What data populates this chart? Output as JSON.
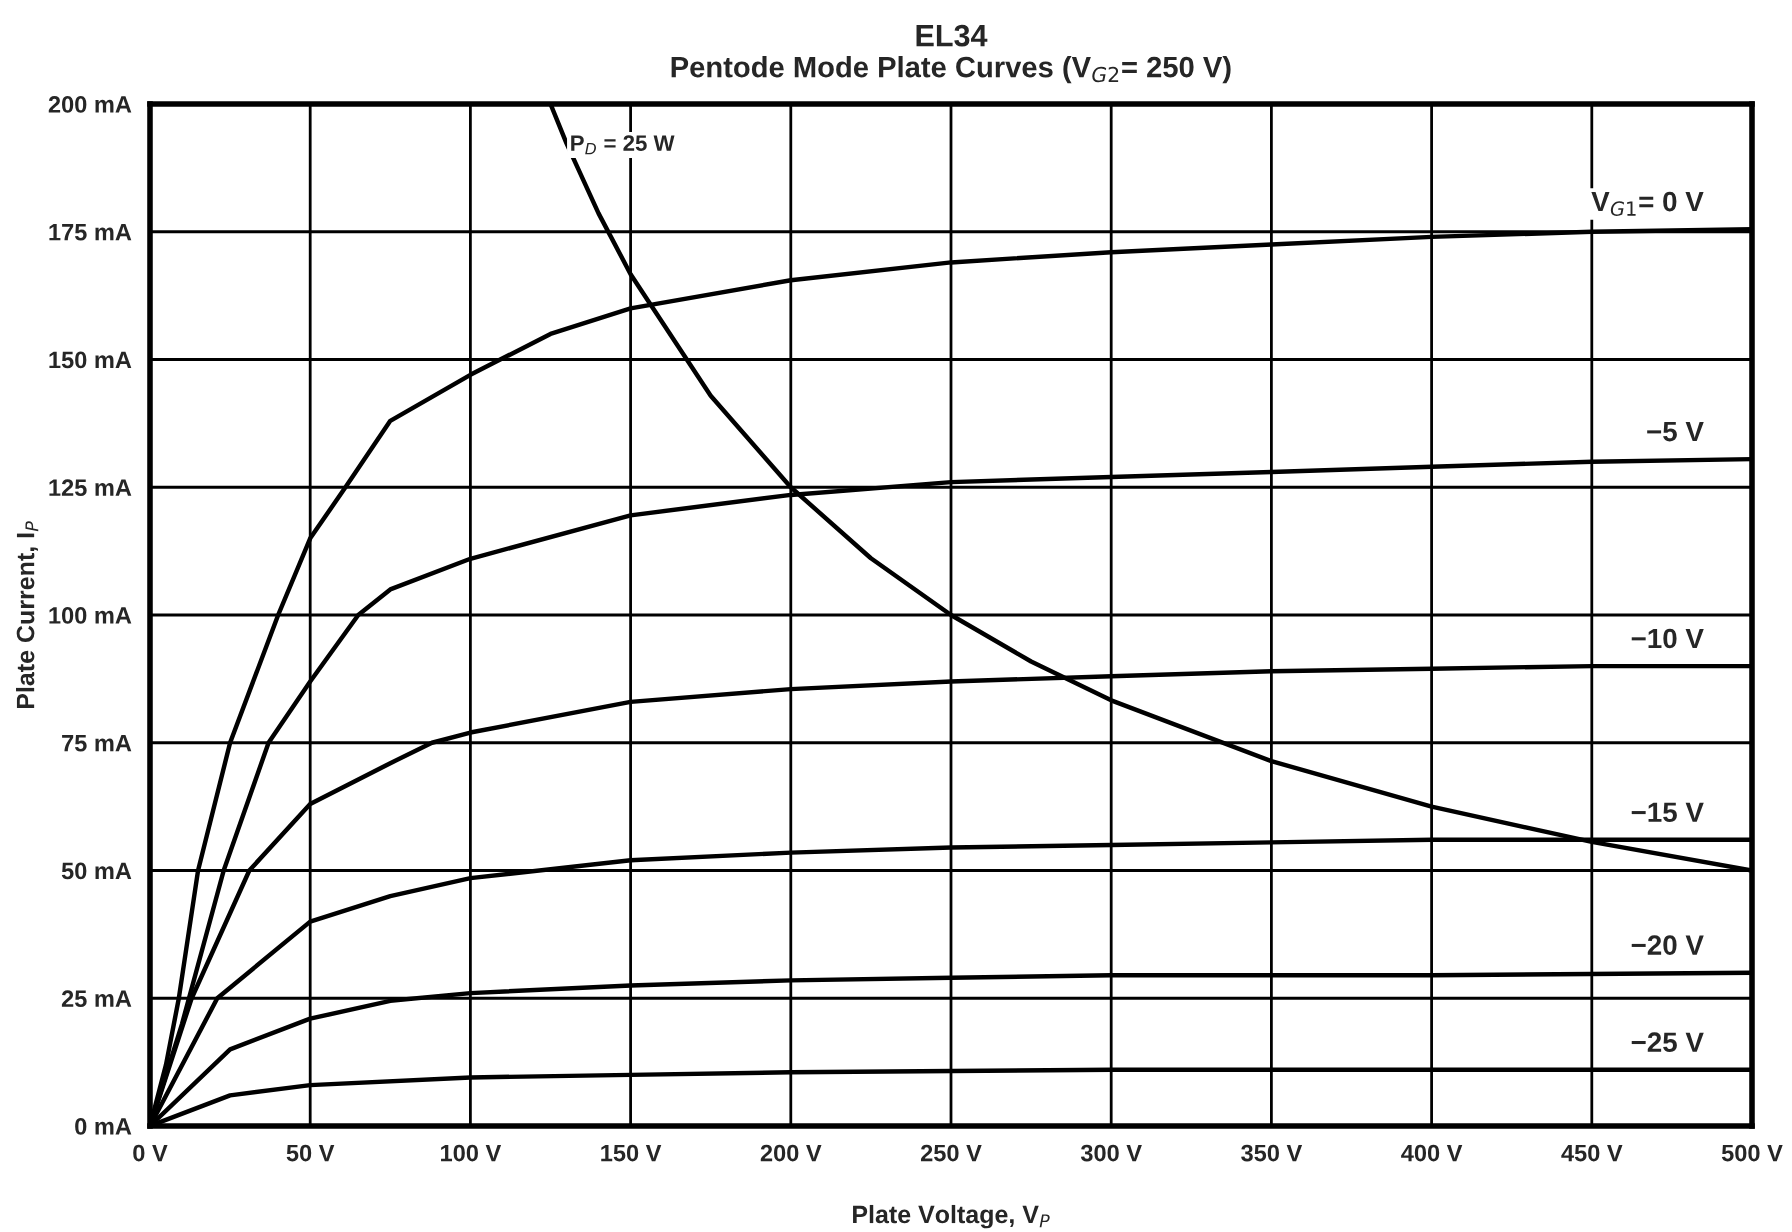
{
  "chart_data": {
    "type": "line",
    "title": "EL34",
    "subtitle": "Pentode Mode Plate Curves (V$_{G2}$= 250 V)",
    "xlabel": "Plate Voltage, V$_{P}$",
    "ylabel": "Plate Current, I$_{P}$",
    "xlim": [
      0,
      500
    ],
    "ylim": [
      0,
      200
    ],
    "xticks": [
      {
        "value": 0,
        "label": "0 V"
      },
      {
        "value": 50,
        "label": "50 V"
      },
      {
        "value": 100,
        "label": "100 V"
      },
      {
        "value": 150,
        "label": "150 V"
      },
      {
        "value": 200,
        "label": "200 V"
      },
      {
        "value": 250,
        "label": "250 V"
      },
      {
        "value": 300,
        "label": "300 V"
      },
      {
        "value": 350,
        "label": "350 V"
      },
      {
        "value": 400,
        "label": "400 V"
      },
      {
        "value": 450,
        "label": "450 V"
      },
      {
        "value": 500,
        "label": "500 V"
      }
    ],
    "yticks": [
      {
        "value": 0,
        "label": "0 mA"
      },
      {
        "value": 25,
        "label": "25 mA"
      },
      {
        "value": 50,
        "label": "50 mA"
      },
      {
        "value": 75,
        "label": "75 mA"
      },
      {
        "value": 100,
        "label": "100 mA"
      },
      {
        "value": 125,
        "label": "125 mA"
      },
      {
        "value": 150,
        "label": "150 mA"
      },
      {
        "value": 175,
        "label": "175 mA"
      },
      {
        "value": 200,
        "label": "200 mA"
      }
    ],
    "grid": true,
    "legend": false,
    "marker": "none",
    "line_style": "solid",
    "series": [
      {
        "name": "V$_{G1}$= 0 V",
        "color": "#000000",
        "x": [
          0,
          5,
          9,
          15,
          25,
          40,
          50,
          61,
          75,
          100,
          125,
          150,
          200,
          250,
          300,
          350,
          400,
          450,
          500
        ],
        "values": [
          0,
          12,
          25,
          50,
          75,
          100,
          115,
          125,
          138,
          147,
          155,
          160,
          165.5,
          169,
          171,
          172.5,
          174,
          175,
          175.5
        ]
      },
      {
        "name": "−5 V",
        "color": "#000000",
        "x": [
          0,
          10,
          23,
          37,
          50,
          65,
          75,
          100,
          150,
          200,
          250,
          300,
          350,
          400,
          450,
          500
        ],
        "values": [
          0,
          20,
          50,
          75,
          87,
          100,
          105,
          111,
          119.5,
          123.5,
          126,
          127,
          128,
          129,
          130,
          130.5
        ]
      },
      {
        "name": "−10 V",
        "color": "#000000",
        "x": [
          0,
          13,
          31,
          50,
          75,
          88,
          100,
          150,
          200,
          250,
          300,
          350,
          400,
          450,
          500
        ],
        "values": [
          0,
          25,
          50,
          63,
          71,
          75,
          77,
          83,
          85.5,
          87,
          88,
          89,
          89.5,
          90,
          90
        ]
      },
      {
        "name": "−15 V",
        "color": "#000000",
        "x": [
          0,
          21,
          50,
          75,
          100,
          150,
          200,
          250,
          300,
          350,
          400,
          500
        ],
        "values": [
          0,
          25,
          40,
          45,
          48.5,
          52,
          53.5,
          54.5,
          55,
          55.5,
          56,
          56
        ]
      },
      {
        "name": "−20 V",
        "color": "#000000",
        "x": [
          0,
          25,
          50,
          75,
          100,
          150,
          200,
          250,
          300,
          400,
          500
        ],
        "values": [
          0,
          15,
          21,
          24.5,
          26,
          27.5,
          28.5,
          29,
          29.5,
          29.5,
          30
        ]
      },
      {
        "name": "−25 V",
        "color": "#000000",
        "x": [
          0,
          25,
          50,
          100,
          150,
          200,
          300,
          500
        ],
        "values": [
          0,
          6,
          8,
          9.5,
          10,
          10.5,
          11,
          11
        ]
      },
      {
        "name": "P$_{D}$ = 25 W",
        "color": "#000000",
        "x": [
          125,
          130,
          140,
          150,
          175,
          200,
          225,
          250,
          275,
          300,
          350,
          400,
          450,
          500
        ],
        "values": [
          200,
          192.3,
          178.6,
          166.7,
          142.9,
          125,
          111.1,
          100,
          90.9,
          83.3,
          71.4,
          62.5,
          55.6,
          50
        ]
      }
    ]
  }
}
